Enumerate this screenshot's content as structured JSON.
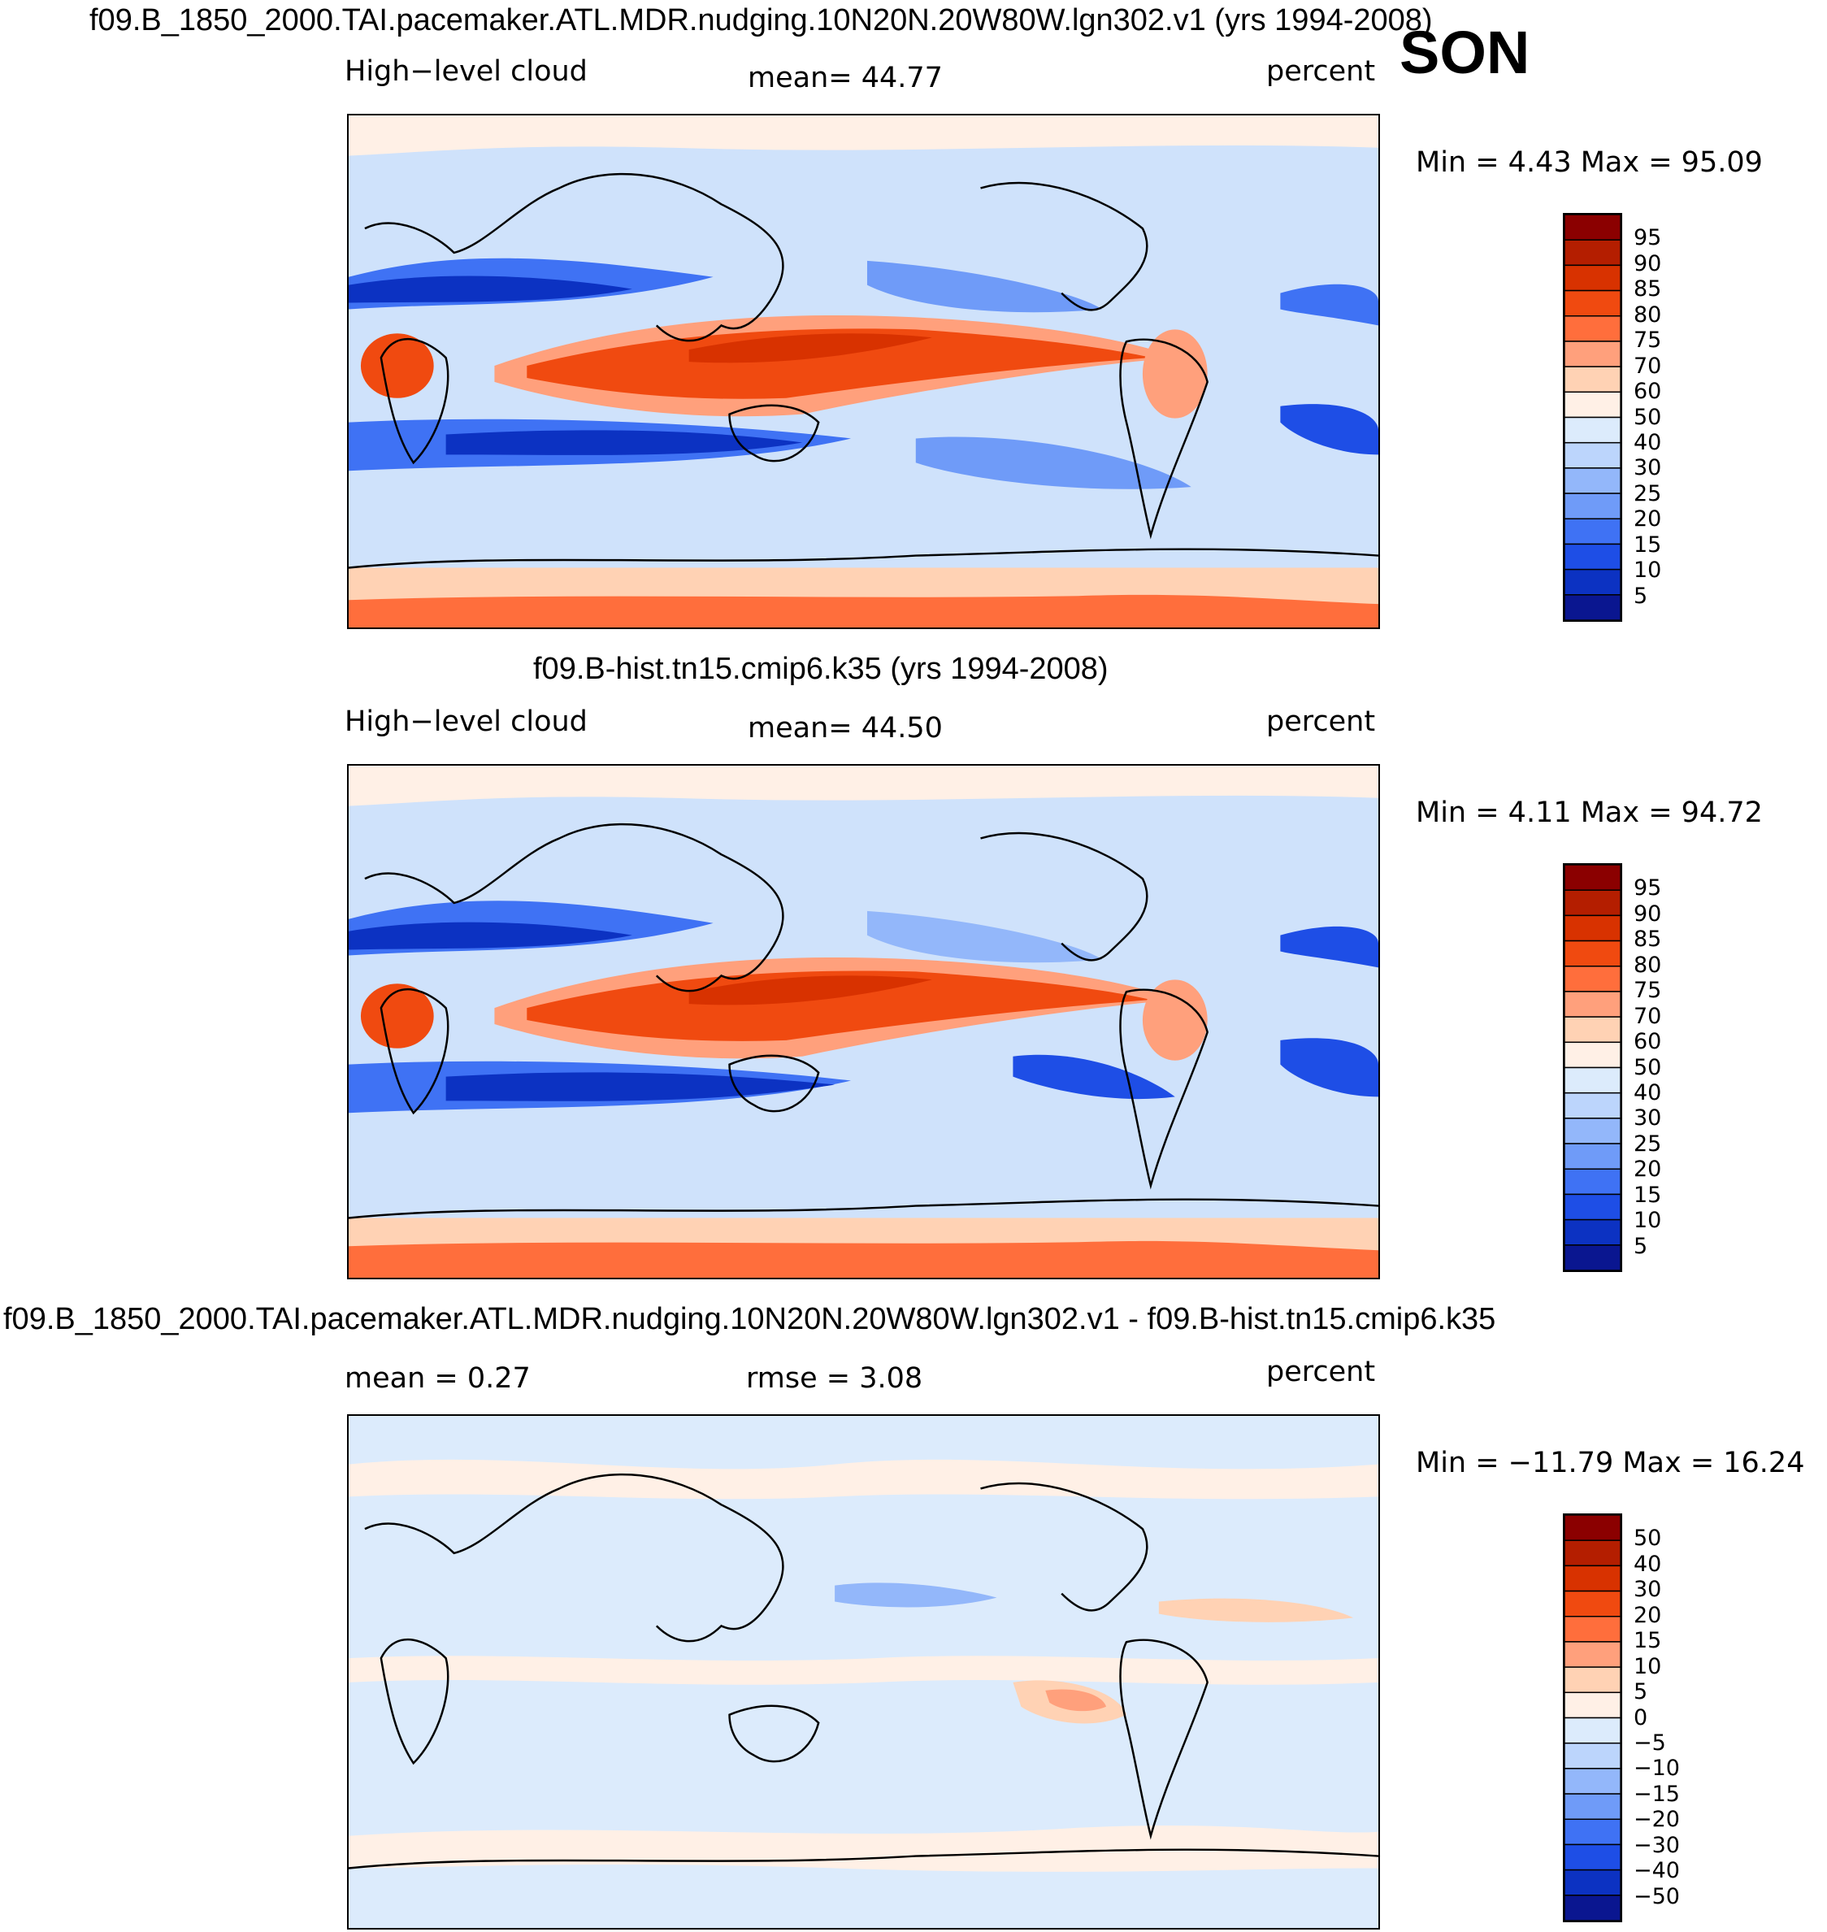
{
  "season": "SON",
  "panels": [
    {
      "title": "f09.B_1850_2000.TAI.pacemaker.ATL.MDR.nudging.10N20N.20W80W.lgn302.v1 (yrs 1994-2008)",
      "left_label": "High−level cloud",
      "center_label": "mean=   44.77",
      "units": "percent",
      "minmax": "Min =     4.43  Max =    95.09",
      "colorbar_labels": [
        "95",
        "90",
        "85",
        "80",
        "75",
        "70",
        "60",
        "50",
        "40",
        "30",
        "25",
        "20",
        "15",
        "10",
        "5"
      ],
      "colorbar_colors": [
        "#8b0000",
        "#b41e00",
        "#d83200",
        "#f04a10",
        "#ff6e3c",
        "#ffa07c",
        "#ffd2b4",
        "#fff0e6",
        "#dcebfc",
        "#bcd5fc",
        "#93b7fa",
        "#6f9bf8",
        "#3f72f4",
        "#1e4ee6",
        "#0c32c2",
        "#0a1690"
      ]
    },
    {
      "title": "f09.B-hist.tn15.cmip6.k35 (yrs 1994-2008)",
      "left_label": "High−level cloud",
      "center_label": "mean=   44.50",
      "units": "percent",
      "minmax": "Min =     4.11  Max =    94.72",
      "colorbar_labels": [
        "95",
        "90",
        "85",
        "80",
        "75",
        "70",
        "60",
        "50",
        "40",
        "30",
        "25",
        "20",
        "15",
        "10",
        "5"
      ],
      "colorbar_colors": [
        "#8b0000",
        "#b41e00",
        "#d83200",
        "#f04a10",
        "#ff6e3c",
        "#ffa07c",
        "#ffd2b4",
        "#fff0e6",
        "#dcebfc",
        "#bcd5fc",
        "#93b7fa",
        "#6f9bf8",
        "#3f72f4",
        "#1e4ee6",
        "#0c32c2",
        "#0a1690"
      ]
    },
    {
      "title": "f09.B_1850_2000.TAI.pacemaker.ATL.MDR.nudging.10N20N.20W80W.lgn302.v1 - f09.B-hist.tn15.cmip6.k35",
      "left_label": "mean =     0.27",
      "center_label": "rmse =     3.08",
      "units": "percent",
      "minmax": "Min = −11.79  Max =    16.24",
      "colorbar_labels": [
        "50",
        "40",
        "30",
        "20",
        "15",
        "10",
        "5",
        "0",
        "−5",
        "−10",
        "−15",
        "−20",
        "−30",
        "−40",
        "−50"
      ],
      "colorbar_colors": [
        "#8b0000",
        "#b41e00",
        "#d83200",
        "#f04a10",
        "#ff6e3c",
        "#ffa07c",
        "#ffd2b4",
        "#fff0e6",
        "#dcebfc",
        "#bcd5fc",
        "#93b7fa",
        "#6f9bf8",
        "#3f72f4",
        "#1e4ee6",
        "#0c32c2",
        "#0a1690"
      ]
    }
  ]
}
